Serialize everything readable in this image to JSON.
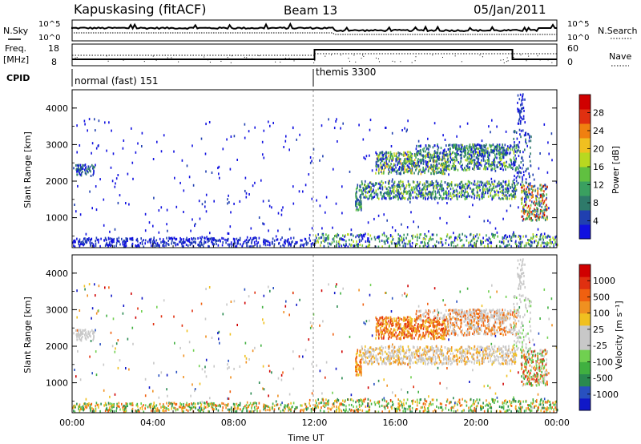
{
  "header": {
    "station": "Kapuskasing (fitACF)",
    "beam": "Beam 13",
    "date": "05/Jan/2011"
  },
  "sky_panel": {
    "left_label": "N.Sky",
    "right_label": "N.Search",
    "left_ticks": [
      "10^5",
      "10^0"
    ],
    "right_ticks": [
      "10^5",
      "10^0"
    ]
  },
  "freq_panel": {
    "left_label_1": "Freq.",
    "left_label_2": "[MHz]",
    "right_label": "Nave",
    "left_ticks": [
      "18",
      "8"
    ],
    "right_ticks": [
      "60",
      "0"
    ]
  },
  "cpid": {
    "label": "CPID",
    "modes": [
      {
        "name": "normal (fast) 151",
        "start_hour": 0
      },
      {
        "name": "themis 3300",
        "start_hour": 12
      }
    ]
  },
  "chart_data": [
    {
      "type": "heatmap",
      "name": "power",
      "ylabel": "Slant Range [km]",
      "xlabel": "",
      "x_range_hours": [
        0,
        24
      ],
      "ylim": [
        180,
        4500
      ],
      "y_ticks": [
        1000,
        2000,
        3000,
        4000
      ],
      "colorbar": {
        "label": "Power [dB]",
        "ticks": [
          "28",
          "24",
          "20",
          "16",
          "12",
          "8",
          "4"
        ],
        "colors": [
          "#1010e0",
          "#2040b0",
          "#2e7a6a",
          "#3aa060",
          "#60c040",
          "#b8d820",
          "#f0c020",
          "#f08010",
          "#e03010",
          "#d00000"
        ]
      }
    },
    {
      "type": "heatmap",
      "name": "velocity",
      "ylabel": "Slant Range [km]",
      "xlabel": "Time UT",
      "x_range_hours": [
        0,
        24
      ],
      "ylim": [
        180,
        4500
      ],
      "y_ticks": [
        1000,
        2000,
        3000,
        4000
      ],
      "x_tick_labels": [
        "00:00",
        "04:00",
        "08:00",
        "12:00",
        "16:00",
        "20:00",
        "00:00"
      ],
      "colorbar": {
        "label": "Velocity [m s⁻¹]",
        "ticks": [
          "1000",
          "500",
          "100",
          "25",
          "-25",
          "-100",
          "-500",
          "-1000"
        ],
        "colors": [
          "#1018c8",
          "#2850c0",
          "#2a8a50",
          "#40b040",
          "#70d050",
          "#c8c8c8",
          "#c8c8c8",
          "#f0c020",
          "#f09020",
          "#f06010",
          "#e03010",
          "#d00000"
        ]
      }
    }
  ]
}
